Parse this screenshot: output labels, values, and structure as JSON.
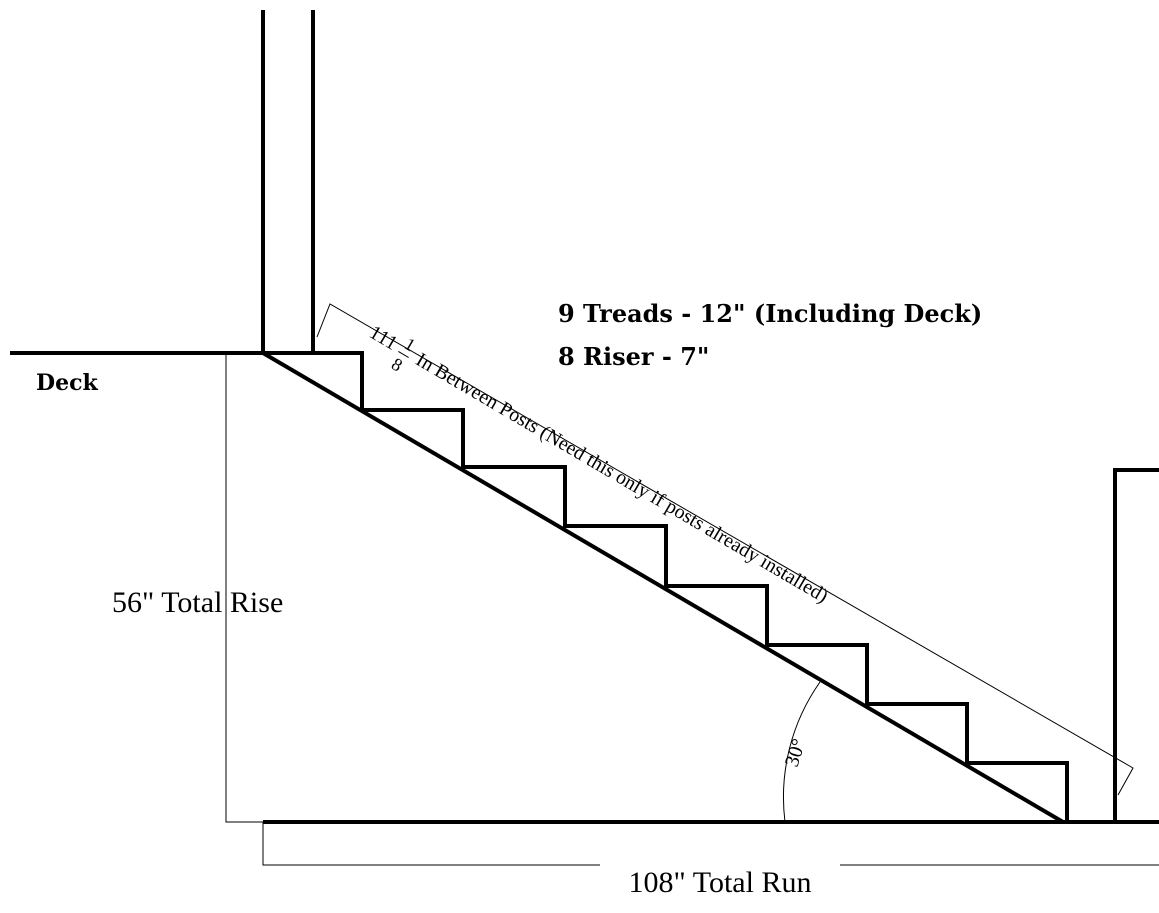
{
  "labels": {
    "deck": "Deck",
    "treads": "9 Treads - 12\" (Including Deck)",
    "risers": "8 Riser - 7\"",
    "total_rise": "56\" Total Rise",
    "total_run": "108\" Total Run",
    "angle": "30°",
    "post_distance": {
      "whole": "111",
      "numerator": "1",
      "denominator": "8",
      "text": "In Between Posts (Need this only if posts already installed)"
    }
  }
}
